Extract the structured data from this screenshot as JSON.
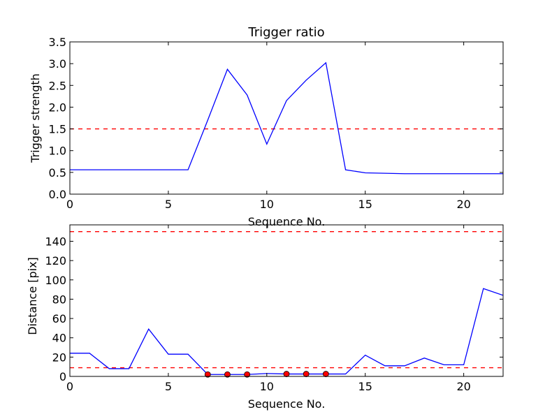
{
  "chart_data": [
    {
      "type": "line",
      "title": "Trigger ratio",
      "xlabel": "Sequence No.",
      "ylabel": "Trigger strength",
      "xlim": [
        0,
        22
      ],
      "ylim": [
        0,
        3.5
      ],
      "xticks": [
        0,
        5,
        10,
        15,
        20
      ],
      "yticks": [
        0.0,
        0.5,
        1.0,
        1.5,
        2.0,
        2.5,
        3.0,
        3.5
      ],
      "ytick_labels": [
        "0.0",
        "0.5",
        "1.0",
        "1.5",
        "2.0",
        "2.5",
        "3.0",
        "3.5"
      ],
      "grid": false,
      "series": [
        {
          "x": [
            0,
            1,
            2,
            3,
            4,
            5,
            6,
            7,
            8,
            9,
            10,
            11,
            12,
            13,
            14,
            15,
            16,
            17,
            18,
            19,
            20,
            21,
            22
          ],
          "values": [
            0.56,
            0.56,
            0.56,
            0.56,
            0.56,
            0.56,
            0.56,
            1.7,
            2.87,
            2.28,
            1.15,
            2.15,
            2.62,
            3.02,
            0.56,
            0.49,
            0.48,
            0.47,
            0.47,
            0.47,
            0.47,
            0.47,
            0.47
          ],
          "color": "#0000ff",
          "style": "solid"
        }
      ],
      "threshold": {
        "y": 1.5,
        "color": "#ff0000",
        "style": "dashed"
      }
    },
    {
      "type": "line",
      "title": "",
      "xlabel": "Sequence No.",
      "ylabel": "Distance [pix]",
      "xlim": [
        0,
        22
      ],
      "ylim": [
        0,
        157
      ],
      "xticks": [
        0,
        5,
        10,
        15,
        20
      ],
      "yticks": [
        0,
        20,
        40,
        60,
        80,
        100,
        120,
        140
      ],
      "ytick_labels": [
        "0",
        "20",
        "40",
        "60",
        "80",
        "100",
        "120",
        "140"
      ],
      "grid": false,
      "series": [
        {
          "x": [
            0,
            1,
            2,
            3,
            4,
            5,
            6,
            7,
            8,
            9,
            10,
            11,
            12,
            13,
            14,
            15,
            16,
            17,
            18,
            19,
            20,
            21,
            22
          ],
          "values": [
            24,
            24,
            8,
            8,
            49,
            23,
            23,
            2,
            2,
            2,
            3,
            2.5,
            2.5,
            2.5,
            2.5,
            22,
            11,
            11,
            19,
            12,
            12,
            91,
            84
          ],
          "color": "#0000ff",
          "style": "solid"
        }
      ],
      "markers": {
        "x": [
          7,
          8,
          9,
          11,
          12,
          13
        ],
        "values": [
          2,
          2,
          2,
          2.5,
          2.5,
          2.5
        ],
        "color": "#ff0000"
      },
      "thresholds": [
        {
          "y": 150,
          "color": "#ff0000",
          "style": "dashed"
        },
        {
          "y": 9,
          "color": "#ff0000",
          "style": "dashed"
        }
      ]
    }
  ]
}
